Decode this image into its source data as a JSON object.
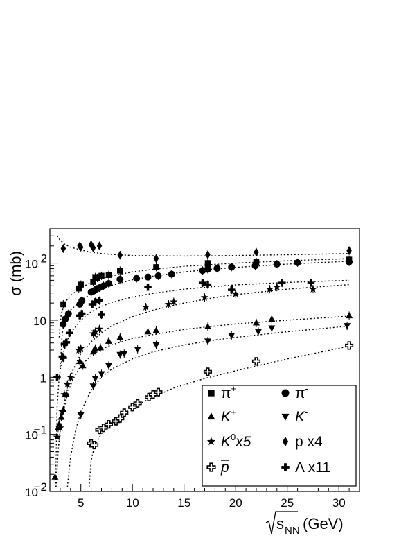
{
  "chart_data": {
    "type": "scatter",
    "xlabel": "√s_NN (GeV)",
    "xlabel_parts": {
      "main": "s",
      "sub": "NN",
      "unit": " (GeV)"
    },
    "ylabel": "σ (mb)",
    "xlim": [
      2,
      32
    ],
    "ylim": [
      0.01,
      400
    ],
    "log_y": true,
    "grid": false,
    "legend_position": "bottom-right",
    "x_ticks": [
      5,
      10,
      15,
      20,
      25,
      30
    ],
    "y_ticks": [
      {
        "value": 0.01,
        "base": "10",
        "exp": "−2"
      },
      {
        "value": 0.1,
        "base": "10",
        "exp": "−1"
      },
      {
        "value": 1,
        "base": "1",
        "exp": ""
      },
      {
        "value": 10,
        "base": "10",
        "exp": ""
      },
      {
        "value": 100,
        "base": "10",
        "exp": "2"
      }
    ],
    "series": [
      {
        "name": "π⁺",
        "label_main": "π",
        "label_sup": "+",
        "marker": "square",
        "x": [
          3.3,
          4.8,
          5.0,
          6.2,
          6.4,
          6.6,
          7.0,
          7.7,
          8.8,
          12.3,
          17.3,
          17.3,
          22.0,
          31.0
        ],
        "y": [
          19,
          36,
          42,
          47,
          57,
          55,
          60,
          62,
          74,
          85,
          100,
          90,
          105,
          115
        ],
        "fit_x": [
          2.9,
          3.1,
          3.5,
          4,
          5,
          6,
          7,
          8,
          10,
          12,
          15,
          18,
          20,
          25,
          31
        ],
        "fit_y": [
          5,
          13,
          21,
          27,
          37,
          46,
          54,
          60,
          70,
          78,
          88,
          95,
          100,
          110,
          120
        ]
      },
      {
        "name": "π⁻",
        "label_main": "π",
        "label_sup": "-",
        "marker": "circle",
        "x": [
          3.3,
          3.5,
          3.8,
          4.9,
          5.1,
          6.0,
          6.3,
          6.5,
          6.8,
          7.2,
          7.7,
          8.8,
          10.4,
          11.5,
          12.5,
          13.8,
          16.8,
          17.3,
          18.2,
          19.6,
          21.9,
          24.0,
          26.0,
          31.0
        ],
        "y": [
          8.5,
          10.5,
          13,
          19,
          22,
          31,
          33,
          35,
          37,
          40,
          44,
          52,
          54,
          57,
          60,
          64,
          74,
          78,
          81,
          85,
          90,
          96,
          102,
          105
        ],
        "fit_x": [
          3.0,
          3.2,
          3.5,
          4,
          5,
          6,
          7,
          8,
          10,
          12,
          15,
          18,
          20,
          25,
          31
        ],
        "fit_y": [
          1.5,
          6,
          10.5,
          15,
          22,
          29,
          35,
          41,
          51,
          59,
          70,
          79,
          84,
          96,
          108
        ]
      },
      {
        "name": "K⁺",
        "label_main": "K",
        "label_sup": "+",
        "marker": "triangle-up",
        "x": [
          2.5,
          2.8,
          2.9,
          3.1,
          3.3,
          3.6,
          4.9,
          5.2,
          6.2,
          6.4,
          6.9,
          7.7,
          8.8,
          11.5,
          12.3,
          17.3,
          22.0,
          23.5,
          31.0
        ],
        "y": [
          0.018,
          0.13,
          0.15,
          0.2,
          0.27,
          0.5,
          1.9,
          1.6,
          2.8,
          3.2,
          3.3,
          4.3,
          5.0,
          6.3,
          6.6,
          7.7,
          9.0,
          10.5,
          12.0
        ],
        "fit_x": [
          2.6,
          2.8,
          3.0,
          3.3,
          3.7,
          4.2,
          5,
          6,
          7,
          8,
          10,
          12,
          15,
          18,
          20,
          25,
          31
        ],
        "fit_y": [
          0.012,
          0.05,
          0.12,
          0.25,
          0.5,
          0.9,
          1.6,
          2.4,
          3.1,
          3.7,
          4.8,
          5.6,
          6.9,
          7.9,
          8.6,
          10,
          11.8
        ]
      },
      {
        "name": "K⁻",
        "label_main": "K",
        "label_sup": "-",
        "marker": "triangle-down",
        "x": [
          5.0,
          6.2,
          6.4,
          7.0,
          7.7,
          8.8,
          9.2,
          10.5,
          12.3,
          17.3,
          19.6,
          22.2,
          23.5,
          30.8
        ],
        "y": [
          0.22,
          0.7,
          0.95,
          1.15,
          1.6,
          2.5,
          2.6,
          3.1,
          3.7,
          4.3,
          5.4,
          6.3,
          7.3,
          8.0
        ],
        "fit_x": [
          3.7,
          4.0,
          4.5,
          5,
          6,
          7,
          8,
          10,
          12,
          15,
          18,
          20,
          25,
          31
        ],
        "fit_y": [
          0.012,
          0.04,
          0.12,
          0.25,
          0.6,
          1.0,
          1.4,
          2.1,
          2.8,
          3.7,
          4.5,
          5.0,
          6.3,
          7.9
        ]
      },
      {
        "name": "K⁰x5",
        "label_main": "K",
        "label_sup": "0",
        "label_after": "x5",
        "marker": "star",
        "x": [
          2.7,
          3.0,
          3.2,
          3.4,
          3.7,
          4.0,
          4.8,
          5.0,
          6.2,
          6.4,
          6.8,
          11.3,
          13.5,
          14.0,
          17.0,
          20.0,
          23.3,
          24.0,
          27.5
        ],
        "y": [
          0.09,
          0.13,
          0.25,
          0.5,
          0.75,
          1.0,
          3.0,
          3.2,
          5.8,
          6.3,
          7.0,
          17,
          19,
          21,
          25,
          29,
          35,
          38,
          35
        ],
        "fit_x": [
          2.6,
          2.8,
          3.0,
          3.3,
          3.7,
          4.2,
          5,
          6,
          7,
          8,
          10,
          12,
          15,
          18,
          20,
          25,
          31
        ],
        "fit_y": [
          0.012,
          0.05,
          0.12,
          0.3,
          0.6,
          1.3,
          2.6,
          4.2,
          6,
          8,
          11.5,
          15,
          20,
          25,
          28,
          35,
          42
        ]
      },
      {
        "name": "p x4",
        "label_main": "p x4",
        "marker": "diamond",
        "x": [
          3.3,
          4.9,
          5.0,
          6.0,
          6.2,
          6.8,
          8.8,
          12.3,
          17.3,
          22.0,
          31.0
        ],
        "y": [
          180,
          200,
          190,
          210,
          185,
          200,
          138,
          120,
          140,
          155,
          165
        ],
        "fit_x": [
          2.7,
          3,
          3.5,
          4,
          5,
          6,
          7,
          8,
          10,
          12,
          15,
          18,
          20,
          25,
          31
        ],
        "fit_y": [
          300,
          250,
          210,
          190,
          170,
          155,
          147,
          142,
          136,
          134,
          133,
          134,
          136,
          140,
          147
        ]
      },
      {
        "name": "p̄",
        "label_main": "p",
        "label_overline": true,
        "marker": "open-cross",
        "x": [
          6.0,
          6.3,
          6.8,
          7.2,
          7.7,
          8.4,
          8.8,
          9.2,
          10.0,
          10.5,
          11.6,
          12.0,
          12.5,
          17.3,
          22.0,
          31.0
        ],
        "y": [
          0.07,
          0.065,
          0.12,
          0.13,
          0.15,
          0.17,
          0.19,
          0.24,
          0.3,
          0.35,
          0.45,
          0.5,
          0.55,
          1.25,
          1.9,
          3.6
        ],
        "fit_x": [
          5.8,
          6.0,
          6.3,
          6.8,
          7.5,
          8.5,
          10,
          12,
          14,
          17,
          20,
          25,
          31
        ],
        "fit_y": [
          0.012,
          0.035,
          0.06,
          0.09,
          0.14,
          0.2,
          0.3,
          0.45,
          0.65,
          0.95,
          1.3,
          2.1,
          3.5
        ]
      },
      {
        "name": "Λ x11",
        "label_main": "Λ x11",
        "marker": "cross",
        "x": [
          2.7,
          3.2,
          3.3,
          3.4,
          3.6,
          3.9,
          4.9,
          5.1,
          6.1,
          6.4,
          6.8,
          7.0,
          11.5,
          16.8,
          17.3,
          19.6,
          24.5,
          27.3
        ],
        "y": [
          1.0,
          2.3,
          2.2,
          3.8,
          4.1,
          6.0,
          12,
          13,
          19,
          21,
          22,
          12.5,
          38,
          45,
          42,
          34,
          45,
          45
        ],
        "fit_x": [
          2.55,
          2.7,
          2.9,
          3.2,
          3.6,
          4.0,
          5,
          6,
          7,
          8,
          10,
          12,
          15,
          18,
          20,
          25,
          31
        ],
        "fit_y": [
          0.012,
          0.3,
          1.0,
          2.2,
          4.0,
          6.0,
          10,
          14,
          17.5,
          20.5,
          25.5,
          29.5,
          35,
          39,
          41.5,
          46,
          50
        ]
      }
    ]
  }
}
